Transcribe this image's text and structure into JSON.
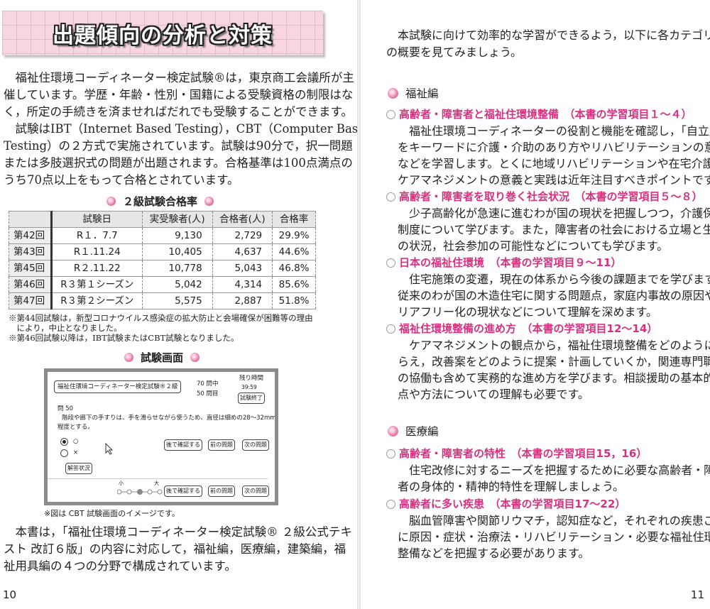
{
  "left_page": {
    "title": "出題傾向の分析と対策",
    "intro_paragraph_1": [
      "福祉住環境コーディネーター検定試験®は，東京商工会議所が主",
      "催しています。学歴・年齢・性別・国籍による受験資格の制限はな",
      "く，所定の手続きを済ませればだれでも受験することができます。"
    ],
    "intro_paragraph_2": [
      "試験はIBT（Internet Based Testing），CBT（Computer Based",
      "Testing）の２方式で実施されています。試験は90分で，択一問題",
      "または多肢選択式の問題が出題されます。合格基準は100点満点の",
      "うち70点以上をもって合格とされています。"
    ],
    "table_caption": "２級試験合格率",
    "table": {
      "headers": [
        "",
        "試験日",
        "実受験者(人)",
        "合格者(人)",
        "合格率"
      ],
      "rows": [
        [
          "第42回",
          "R１．7.7",
          "9,130",
          "2,729",
          "29.9%"
        ],
        [
          "第43回",
          "R１.11.24",
          "10,405",
          "4,637",
          "44.6%"
        ],
        [
          "第45回",
          "R２.11.22",
          "10,778",
          "5,043",
          "46.8%"
        ],
        [
          "第46回",
          "R３第１シーズン",
          "5,042",
          "4,314",
          "85.6%"
        ],
        [
          "第47回",
          "R３第２シーズン",
          "5,575",
          "2,887",
          "51.8%"
        ]
      ]
    },
    "notes": [
      "※第44回試験は，新型コロナウイルス感染症の拡大防止と会場確保が困難等の理由",
      "　により，中止となりました。",
      "※第46回試験以降は，IBT試験またはCBT試験となりました。"
    ],
    "screen_caption": "試験画面",
    "screen": {
      "exam_title": "福祉住環境コーディネーター検定試験®２級",
      "total": "70 問中",
      "current": "50 問目",
      "time_label": "残り時間",
      "time_value": "39:59",
      "end_button": "試験終了",
      "question_no": "問 50",
      "question_lines": [
        "階段や廊下の手すりは、手を滑らせながら使うため、直径は細めの28～32mm",
        "程度とする。"
      ],
      "option_true": "○",
      "option_false": "×",
      "status_button": "解答状況",
      "later_button": "後で確認する",
      "prev_button": "前の問題",
      "next_button": "次の問題",
      "size_small": "小",
      "size_large": "大"
    },
    "screen_note": "※図は CBT 試験画面のイメージです。",
    "closing_paragraph": [
      "本書は，「福祉住環境コーディネーター検定試験® ２級公式テキ",
      "スト 改訂６版」の内容に対応して，福祉編，医療編，建築編，福",
      "祉用具編の４つの分野で構成されています。"
    ],
    "page_number": "10"
  },
  "right_page": {
    "intro": [
      "本試験に向けて効率的な学習ができるよう，以下に各カテゴリー",
      "の概要を見てみましょう。"
    ],
    "sections": [
      {
        "title": "福祉編",
        "items": [
          {
            "heading": "高齢者・障害者と福祉住環境整備　（本書の学習項目１～４）",
            "body": [
              "福祉住環境コーディネーターの役割と機能を確認し，「自立」",
              "をキーワードに介護・介助のあり方やリハビリテーションの意義",
              "などを学習します。とくに地域リハビリテーションや在宅介護，",
              "ケアマネジメントの意義と実践は近年注目すべきポイントです。"
            ]
          },
          {
            "heading": "高齢者・障害者を取り巻く社会状況　（本書の学習項目５～８）",
            "body": [
              "少子高齢化が急速に進むわが国の現状を把握しつつ，介護保険",
              "制度について学びます。また，障害者の社会における立場と生活",
              "の状況，社会参加の可能性などについても学びます。"
            ]
          },
          {
            "heading": "日本の福祉住環境　（本書の学習項目９～11）",
            "body": [
              "住宅施策の変遷，現在の体系から今後の課題までを学びます。",
              "従来のわが国の木造住宅に関する問題点，家庭内事故の原因やバ",
              "リアフリー化の現状などについて理解を深めます。"
            ]
          },
          {
            "heading": "福祉住環境整備の進め方　（本書の学習項目12～14）",
            "body": [
              "ケアマネジメントの観点から，福祉住環境整備をどのようにと",
              "らえ，改善案をどのように提案・計画していくか，関連専門職と",
              "の協働も含めて実務的な進め方を学びます。相談援助の基本的視",
              "点や方法についての理解も必要です。"
            ]
          }
        ]
      },
      {
        "title": "医療編",
        "items": [
          {
            "heading": "高齢者・障害者の特性　（本書の学習項目15，16）",
            "body": [
              "住宅改修に対するニーズを把握するために必要な高齢者・障害",
              "者の身体的・精神的特性を理解しましょう。"
            ]
          },
          {
            "heading": "高齢者に多い疾患　（本書の学習項目17～22）",
            "body": [
              "脳血管障害や関節リウマチ，認知症など，それぞれの疾患ごと",
              "に原因・症状・治療法・リハビリテーション・必要な福祉住環境",
              "整備などを把握する必要があります。"
            ]
          }
        ]
      }
    ],
    "page_number": "11"
  },
  "colors": {
    "accent": "#d8307f",
    "title_band": "#f8d5e2"
  }
}
